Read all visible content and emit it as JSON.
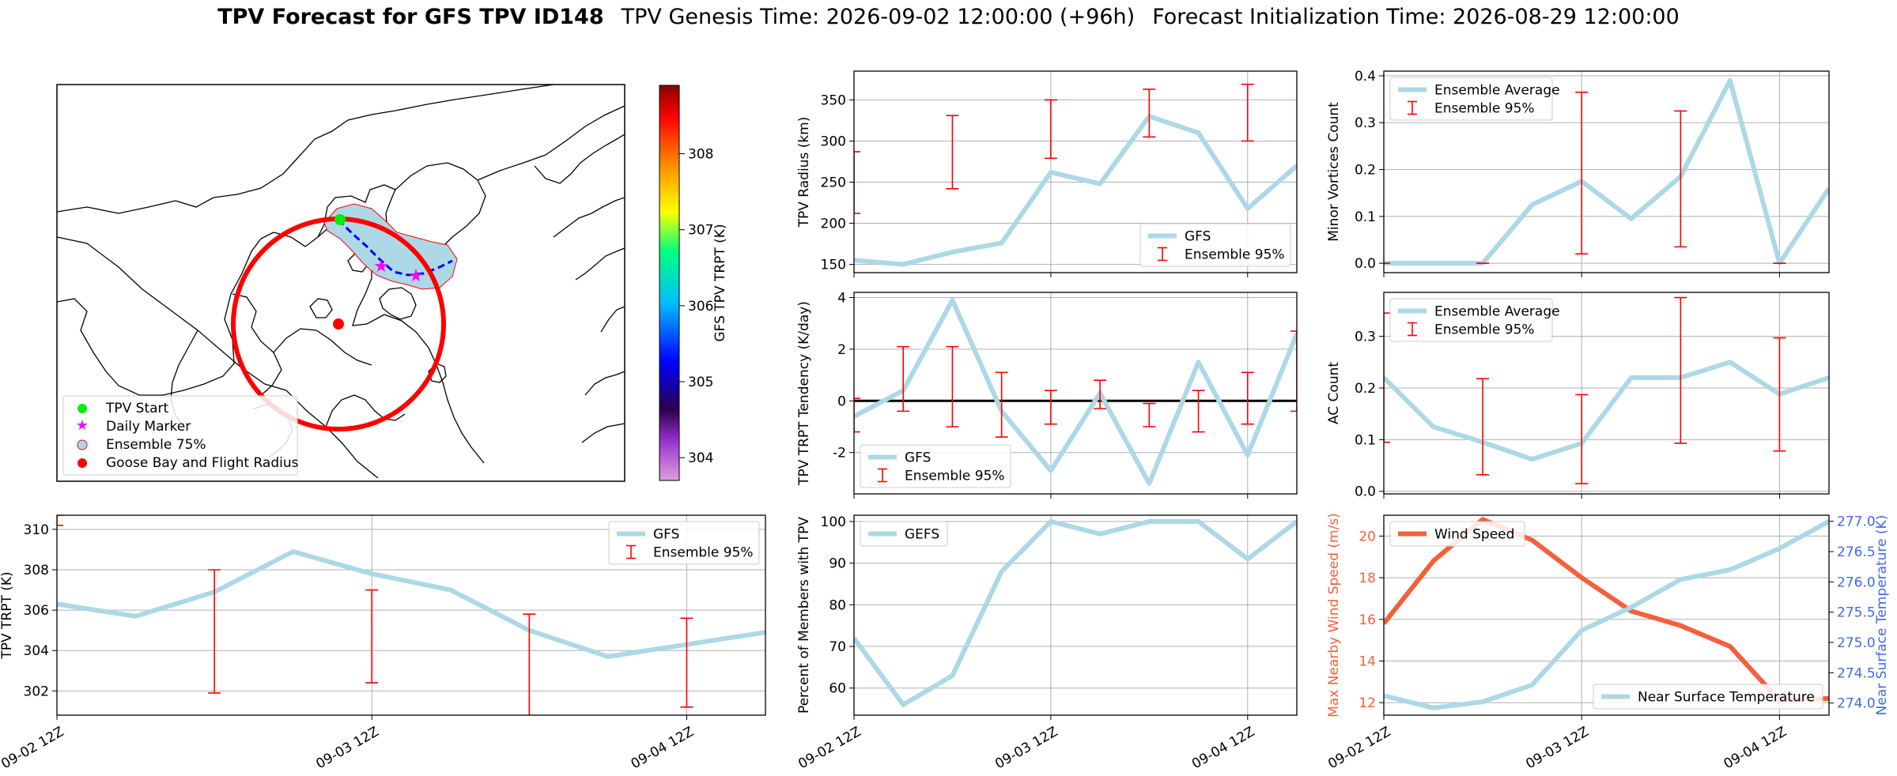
{
  "title": {
    "main": "TPV Forecast for GFS TPV ID148",
    "genesis": "TPV Genesis Time: 2026-09-02 12:00:00 (+96h)",
    "init": "Forecast Initialization Time: 2026-08-29 12:00:00"
  },
  "colors": {
    "gfs": "#add8e6",
    "ens": "#ff0000",
    "wind": "#f4603c",
    "temp_axis": "#4169e1",
    "marker_start": "#00ee00",
    "marker_daily": "#ff00ff",
    "goose": "#ff0000"
  },
  "chart_data": [
    {
      "id": "map",
      "type": "map",
      "colorbar": {
        "label": "GFS TPV TRPT (K)",
        "ticks": [
          304,
          305,
          306,
          307,
          308
        ],
        "range": [
          303.7,
          308.9
        ]
      },
      "legend": {
        "placement": "lower-left",
        "entries": [
          "TPV Start",
          "Daily Marker",
          "Ensemble 75%",
          "Goose Bay and Flight Radius"
        ]
      }
    },
    {
      "id": "radius",
      "type": "line",
      "ylabel": "TPV Radius (km)",
      "ylim": [
        140,
        385
      ],
      "yticks": [
        150,
        200,
        250,
        300,
        350
      ],
      "legend": {
        "placement": "lower-right",
        "entries": [
          "GFS",
          "Ensemble 95%"
        ]
      },
      "series": [
        {
          "name": "GFS",
          "x": [
            0,
            3,
            6,
            9,
            12,
            15,
            18,
            21,
            24,
            27
          ],
          "values": [
            155,
            150,
            165,
            176,
            262,
            248,
            330,
            310,
            218,
            270
          ]
        }
      ],
      "errorbars": [
        {
          "x": 0,
          "low": 212,
          "high": 287
        },
        {
          "x": 6,
          "low": 242,
          "high": 331
        },
        {
          "x": 12,
          "low": 279,
          "high": 350
        },
        {
          "x": 18,
          "low": 305,
          "high": 363
        },
        {
          "x": 24,
          "low": 300,
          "high": 369
        }
      ]
    },
    {
      "id": "minor",
      "type": "line",
      "ylabel": "Minor Vortices Count",
      "ylim": [
        -0.02,
        0.41
      ],
      "yticks": [
        0.0,
        0.1,
        0.2,
        0.3,
        0.4
      ],
      "legend": {
        "placement": "upper-left",
        "entries": [
          "Ensemble Average",
          "Ensemble 95%"
        ]
      },
      "series": [
        {
          "name": "Ensemble Average",
          "x": [
            0,
            3,
            6,
            9,
            12,
            15,
            18,
            21,
            24,
            27
          ],
          "values": [
            0,
            0,
            0,
            0.125,
            0.175,
            0.095,
            0.185,
            0.39,
            0,
            0.16
          ]
        }
      ],
      "errorbars": [
        {
          "x": 0,
          "low": 0,
          "high": 0
        },
        {
          "x": 6,
          "low": 0,
          "high": 0
        },
        {
          "x": 12,
          "low": 0.02,
          "high": 0.365
        },
        {
          "x": 18,
          "low": 0.035,
          "high": 0.325
        },
        {
          "x": 24,
          "low": 0,
          "high": 0
        }
      ]
    },
    {
      "id": "tend",
      "type": "line",
      "ylabel": "TPV TRPT Tendency (K/day)",
      "ylim": [
        -3.6,
        4.2
      ],
      "yticks": [
        -2,
        0,
        2,
        4
      ],
      "zero_line": true,
      "legend": {
        "placement": "lower-left",
        "entries": [
          "GFS",
          "Ensemble 95%"
        ]
      },
      "series": [
        {
          "name": "GFS",
          "x": [
            0,
            3,
            6,
            9,
            12,
            15,
            18,
            21,
            24,
            27
          ],
          "values": [
            -0.6,
            0.4,
            3.9,
            -0.4,
            -2.7,
            0.3,
            -3.2,
            1.5,
            -2.1,
            2.6
          ]
        }
      ],
      "errorbars": [
        {
          "x": 0,
          "low": -1.2,
          "high": 0.1
        },
        {
          "x": 3,
          "low": -0.4,
          "high": 2.1
        },
        {
          "x": 6,
          "low": -1.0,
          "high": 2.1
        },
        {
          "x": 9,
          "low": -1.4,
          "high": 1.1
        },
        {
          "x": 12,
          "low": -0.9,
          "high": 0.4
        },
        {
          "x": 15,
          "low": -0.3,
          "high": 0.8
        },
        {
          "x": 18,
          "low": -1.0,
          "high": -0.1
        },
        {
          "x": 21,
          "low": -1.2,
          "high": 0.4
        },
        {
          "x": 24,
          "low": -0.9,
          "high": 1.1
        },
        {
          "x": 27,
          "low": -0.4,
          "high": 2.7
        }
      ]
    },
    {
      "id": "ac",
      "type": "line",
      "ylabel": "AC Count",
      "ylim": [
        -0.005,
        0.385
      ],
      "yticks": [
        0.0,
        0.1,
        0.2,
        0.3
      ],
      "legend": {
        "placement": "upper-left",
        "entries": [
          "Ensemble Average",
          "Ensemble 95%"
        ]
      },
      "series": [
        {
          "name": "Ensemble Average",
          "x": [
            0,
            3,
            6,
            9,
            12,
            15,
            18,
            21,
            24,
            27
          ],
          "values": [
            0.22,
            0.125,
            0.095,
            0.062,
            0.093,
            0.22,
            0.22,
            0.25,
            0.188,
            0.22
          ]
        }
      ],
      "errorbars": [
        {
          "x": 0,
          "low": 0.095,
          "high": 0.345
        },
        {
          "x": 6,
          "low": 0.032,
          "high": 0.218
        },
        {
          "x": 12,
          "low": 0.015,
          "high": 0.187
        },
        {
          "x": 18,
          "low": 0.093,
          "high": 0.375
        },
        {
          "x": 24,
          "low": 0.078,
          "high": 0.297
        }
      ]
    },
    {
      "id": "trpt",
      "type": "line",
      "ylabel": "TPV TRPT (K)",
      "ylim": [
        300.8,
        310.7
      ],
      "yticks": [
        302,
        304,
        306,
        308,
        310
      ],
      "legend": {
        "placement": "upper-right",
        "entries": [
          "GFS",
          "Ensemble 95%"
        ]
      },
      "series": [
        {
          "name": "GFS",
          "x": [
            0,
            3,
            6,
            9,
            12,
            15,
            18,
            21,
            24,
            27
          ],
          "values": [
            306.3,
            305.7,
            306.9,
            308.9,
            307.8,
            307.0,
            305.0,
            303.7,
            304.3,
            304.9
          ]
        }
      ],
      "errorbars": [
        {
          "x": 0,
          "low": 310.2,
          "high": 310.7
        },
        {
          "x": 6,
          "low": 301.9,
          "high": 308.0
        },
        {
          "x": 12,
          "low": 302.4,
          "high": 307.0
        },
        {
          "x": 18,
          "low": 300.7,
          "high": 305.8
        },
        {
          "x": 24,
          "low": 301.2,
          "high": 305.6
        }
      ]
    },
    {
      "id": "pct",
      "type": "line",
      "ylabel": "Percent of Members with TPV",
      "ylim": [
        53.5,
        101.5
      ],
      "yticks": [
        60,
        70,
        80,
        90,
        100
      ],
      "legend": {
        "placement": "upper-left",
        "entries": [
          "GEFS"
        ]
      },
      "series": [
        {
          "name": "GEFS",
          "x": [
            0,
            3,
            6,
            9,
            12,
            15,
            18,
            21,
            24,
            27
          ],
          "values": [
            72,
            56,
            63,
            88,
            100,
            97,
            100,
            100,
            91,
            100
          ]
        }
      ]
    },
    {
      "id": "wind",
      "type": "line",
      "ylabel": "Max Nearby Wind Speed (m/s)",
      "ylabel_right": "Near Surface Temperature (K)",
      "ylim": [
        11.4,
        21.0
      ],
      "yticks": [
        12,
        14,
        16,
        18,
        20
      ],
      "ylim_right": [
        273.8,
        277.1
      ],
      "yticks_right": [
        274.0,
        274.5,
        275.0,
        275.5,
        276.0,
        276.5,
        277.0
      ],
      "legend": {
        "placement": "upper-left",
        "entries": [
          "Wind Speed"
        ]
      },
      "legend_right": {
        "placement": "lower-right",
        "entries": [
          "Near Surface Temperature"
        ]
      },
      "series": [
        {
          "name": "Wind Speed",
          "axis": "left",
          "x": [
            0,
            3,
            6,
            9,
            12,
            15,
            18,
            21,
            24,
            27
          ],
          "values": [
            15.8,
            18.8,
            20.8,
            19.8,
            18.0,
            16.4,
            15.7,
            14.7,
            12.1,
            12.2
          ]
        },
        {
          "name": "Near Surface Temperature",
          "axis": "right",
          "x": [
            0,
            3,
            6,
            9,
            12,
            15,
            18,
            21,
            24,
            27
          ],
          "values": [
            274.12,
            273.92,
            274.02,
            274.3,
            275.2,
            275.58,
            276.04,
            276.2,
            276.55,
            277.0
          ]
        }
      ]
    }
  ],
  "xaxis": {
    "xlim": [
      0,
      27
    ],
    "ticks": [
      {
        "x": 0,
        "label": "09-02 12Z"
      },
      {
        "x": 12,
        "label": "09-03 12Z"
      },
      {
        "x": 24,
        "label": "09-04 12Z"
      }
    ]
  }
}
